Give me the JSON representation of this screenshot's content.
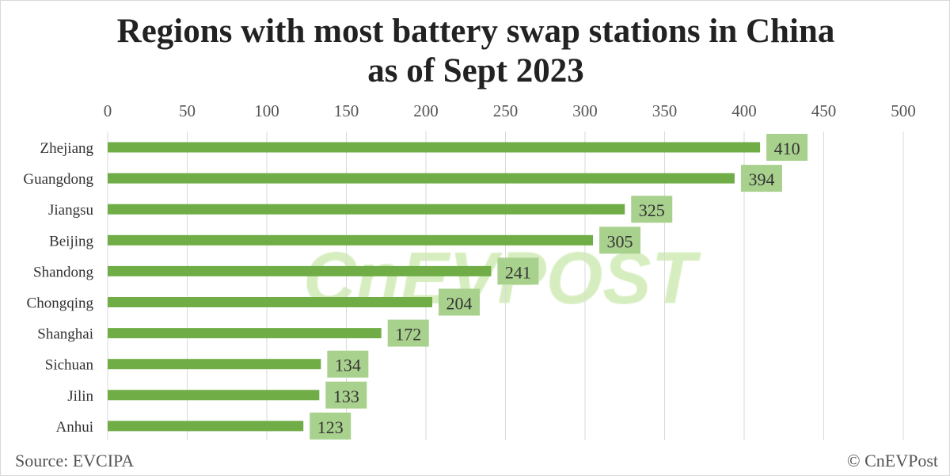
{
  "chart_data": {
    "type": "bar",
    "orientation": "horizontal",
    "title_line1": "Regions with most battery swap stations in China",
    "title_line2": "as of Sept 2023",
    "categories": [
      "Zhejiang",
      "Guangdong",
      "Jiangsu",
      "Beijing",
      "Shandong",
      "Chongqing",
      "Shanghai",
      "Sichuan",
      "Jilin",
      "Anhui"
    ],
    "values": [
      410,
      394,
      325,
      305,
      241,
      204,
      172,
      134,
      133,
      123
    ],
    "xlim": [
      0,
      500
    ],
    "xticks": [
      0,
      50,
      100,
      150,
      200,
      250,
      300,
      350,
      400,
      450,
      500
    ],
    "xaxis_position": "top",
    "grid": true,
    "data_labels": true,
    "colors": {
      "bar": "#70AD47",
      "label_box": "#A9D18E",
      "grid": "#d9d9d9"
    }
  },
  "footer": {
    "source": "Source: EVCIPA",
    "copyright": "© CnEVPost"
  },
  "watermark": "CnEVPOST"
}
